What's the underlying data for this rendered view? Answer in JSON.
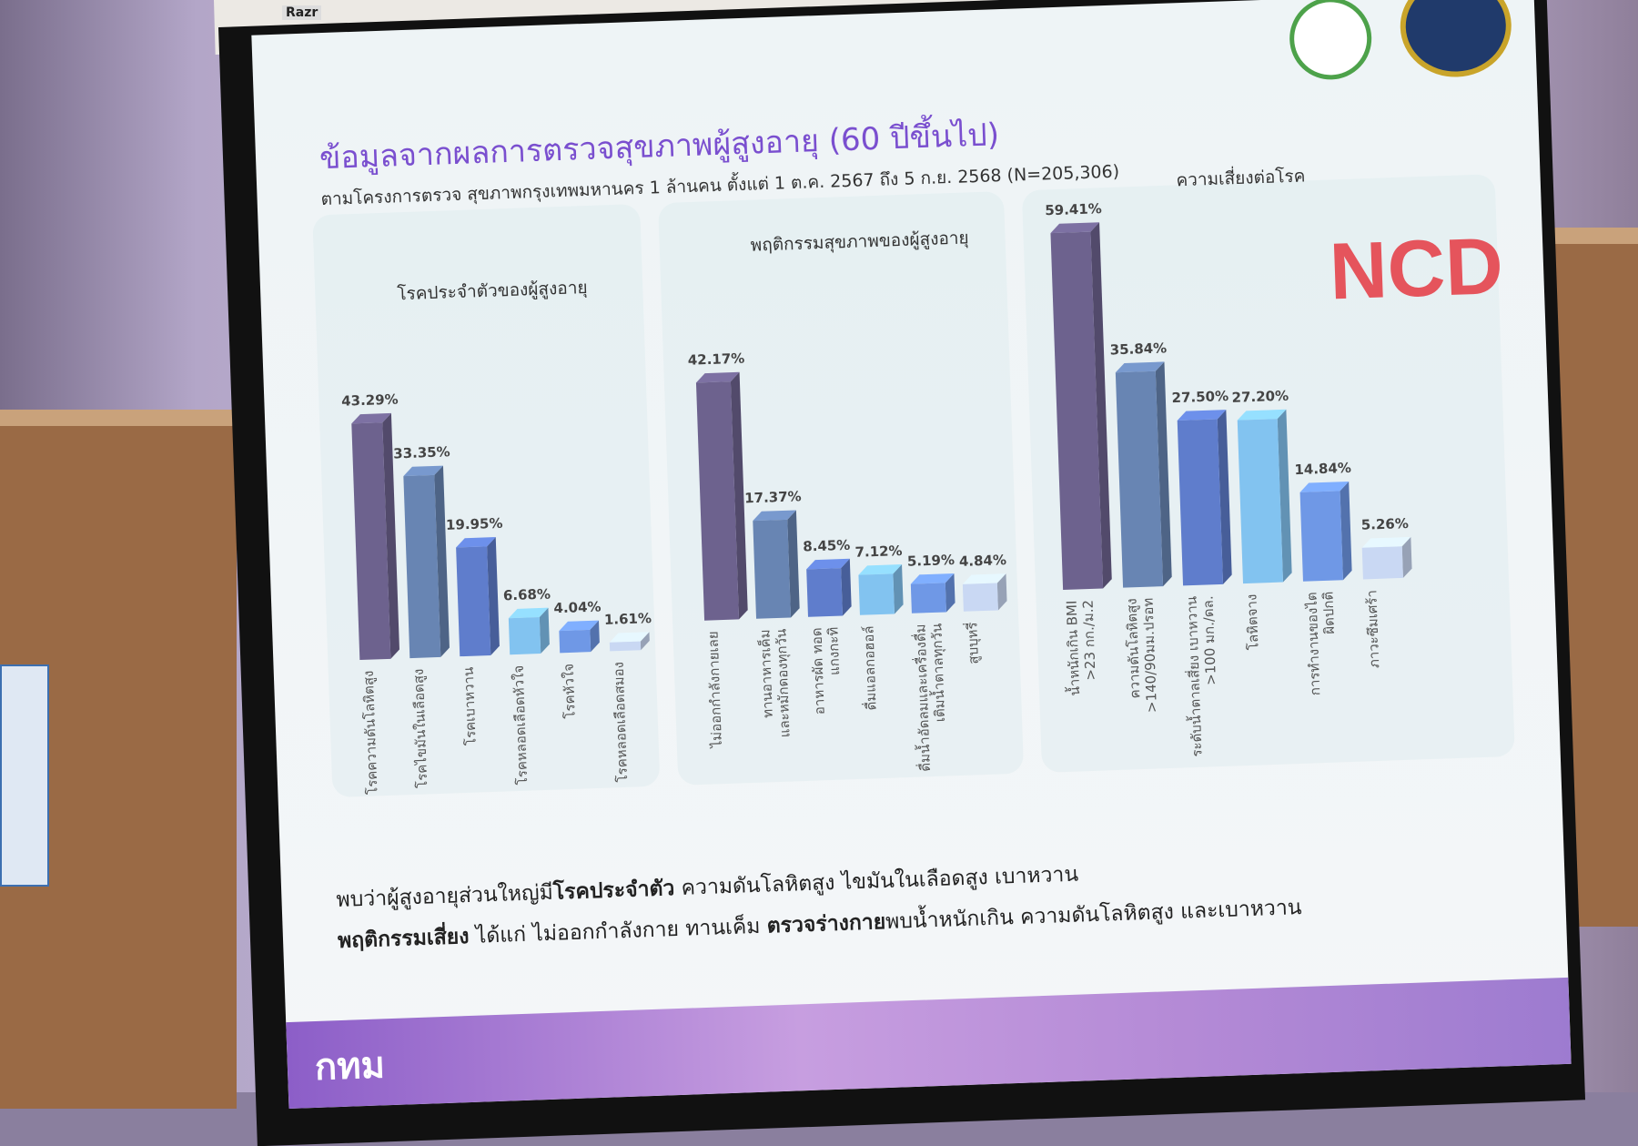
{
  "slide": {
    "title": "ข้อมูลจากผลการตรวจสุขภาพผู้สูงอายุ (60 ปีขึ้นไป)",
    "subtitle": "ตามโครงการตรวจ สุขภาพกรุงเทพมหานคร 1 ล้านคน ตั้งแต่ 1 ต.ค. 2567 ถึง 5 ก.ย. 2568 (N=205,306)",
    "ncd_label": "NCD",
    "summary_line1_a": "พบว่าผู้สูงอายุส่วนใหญ่มี",
    "summary_line1_b": "โรคประจำตัว",
    "summary_line1_c": " ความดันโลหิตสูง ไขมันในเลือดสูง เบาหวาน",
    "summary_line2_a": "พฤติกรรมเสี่ยง",
    "summary_line2_b": " ได้แก่ ไม่ออกกำลังกาย ทานเค็ม ",
    "summary_line2_c": "ตรวจร่างกาย",
    "summary_line2_d": "พบน้ำหนักเกิน ความดันโลหิตสูง และเบาหวาน",
    "footer_logo": "กทม",
    "projector_brand": "Razr"
  },
  "colors": [
    "#6d628e",
    "#6885b3",
    "#5f7dcc",
    "#82c3f0",
    "#6f98e6",
    "#c9d8f3"
  ],
  "chart_data": [
    {
      "type": "bar",
      "title": "โรคประจำตัวของผู้สูงอายุ",
      "categories": [
        "โรคความดันโลหิตสูง",
        "โรคไขมันในเลือดสูง",
        "โรคเบาหวาน",
        "โรคหลอดเลือดหัวใจ",
        "โรคหัวใจ",
        "โรคหลอดเลือดสมอง"
      ],
      "values": [
        43.29,
        33.35,
        19.95,
        6.68,
        4.04,
        1.61
      ],
      "labels": [
        "43.29%",
        "33.35%",
        "19.95%",
        "6.68%",
        "4.04%",
        "1.61%"
      ],
      "unit": "%"
    },
    {
      "type": "bar",
      "title": "พฤติกรรมสุขภาพของผู้สูงอายุ",
      "categories": [
        "ไม่ออกกำลังกายเลย",
        "ทานอาหารเค็ม และหมักดองทุกวัน",
        "อาหารผัด ทอด แกงกะทิ",
        "ดื่มแอลกอฮอล์",
        "ดื่มน้ำอัดลมและเครื่องดื่ม เติมน้ำตาลทุกวัน",
        "สูบบุหรี่"
      ],
      "values": [
        42.17,
        17.37,
        8.45,
        7.12,
        5.19,
        4.84
      ],
      "labels": [
        "42.17%",
        "17.37%",
        "8.45%",
        "7.12%",
        "5.19%",
        "4.84%"
      ],
      "unit": "%"
    },
    {
      "type": "bar",
      "title": "ความเสี่ยงต่อโรค",
      "categories": [
        "น้ำหนักเกิน BMI >23 กก./ม.2",
        "ความดันโลหิตสูง >140/90มม.ปรอท",
        "ระดับน้ำตาลเสี่ยง เบาหวาน >100 มก./ดล.",
        "โลหิตจาง",
        "การทำงานของไต ผิดปกติ",
        "ภาวะซึมเศร้า"
      ],
      "values": [
        59.41,
        35.84,
        27.5,
        27.2,
        14.84,
        5.26
      ],
      "labels": [
        "59.41%",
        "35.84%",
        "27.50%",
        "27.20%",
        "14.84%",
        "5.26%"
      ],
      "unit": "%"
    }
  ]
}
